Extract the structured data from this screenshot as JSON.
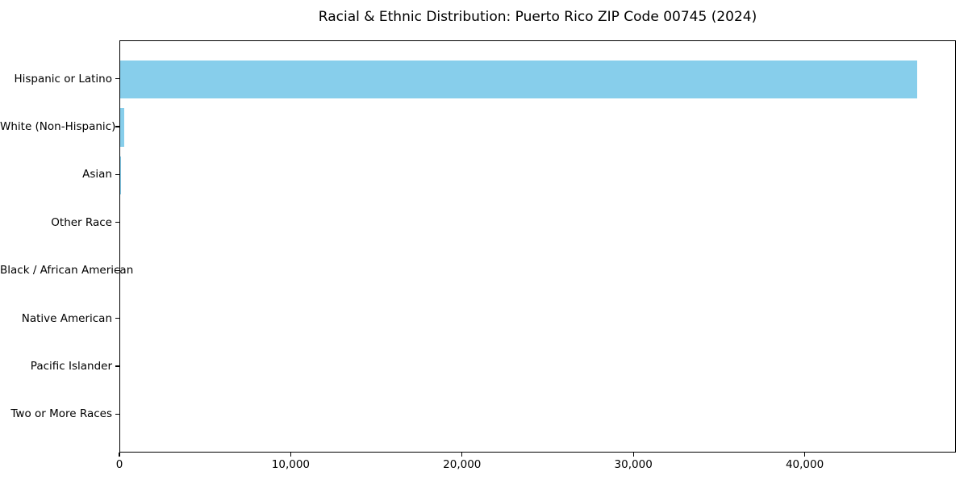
{
  "chart_data": {
    "type": "bar",
    "orientation": "horizontal",
    "title": "Racial & Ethnic Distribution: Puerto Rico ZIP Code 00745 (2024)",
    "categories": [
      "Hispanic or Latino",
      "White (Non-Hispanic)",
      "Asian",
      "Other Race",
      "Black / African American",
      "Native American",
      "Pacific Islander",
      "Two or More Races"
    ],
    "values": [
      46500,
      220,
      50,
      0,
      0,
      0,
      0,
      0
    ],
    "xlabel": "",
    "ylabel": "",
    "xlim": [
      0,
      48825
    ],
    "xticks": [
      0,
      10000,
      20000,
      30000,
      40000
    ],
    "xtick_labels": [
      "0",
      "10,000",
      "20,000",
      "30,000",
      "40,000"
    ],
    "bar_color": "#87CEEB",
    "axis_color": "#000000",
    "background": "#ffffff",
    "grid": false,
    "legend": null
  }
}
